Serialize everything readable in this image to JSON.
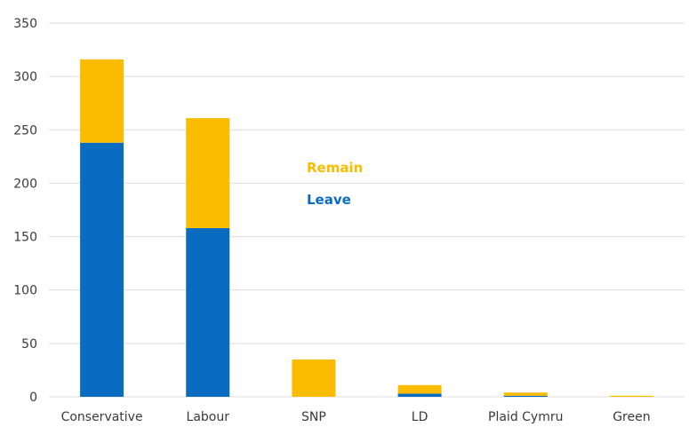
{
  "chart_data": {
    "type": "bar",
    "stacked": true,
    "categories": [
      "Conservative",
      "Labour",
      "SNP",
      "LD",
      "Plaid Cymru",
      "Green"
    ],
    "series": [
      {
        "name": "Leave",
        "color": "#0a6cc1",
        "values": [
          238,
          158,
          0,
          3,
          1,
          0
        ]
      },
      {
        "name": "Remain",
        "color": "#fbbc00",
        "values": [
          78,
          103,
          35,
          8,
          3,
          1
        ]
      }
    ],
    "ylim": [
      0,
      350
    ],
    "yticks": [
      0,
      50,
      100,
      150,
      200,
      250,
      300,
      350
    ],
    "grid": true,
    "legend_position": "inside-center",
    "legend_order": [
      "Remain",
      "Leave"
    ],
    "title": "",
    "xlabel": "",
    "ylabel": ""
  }
}
